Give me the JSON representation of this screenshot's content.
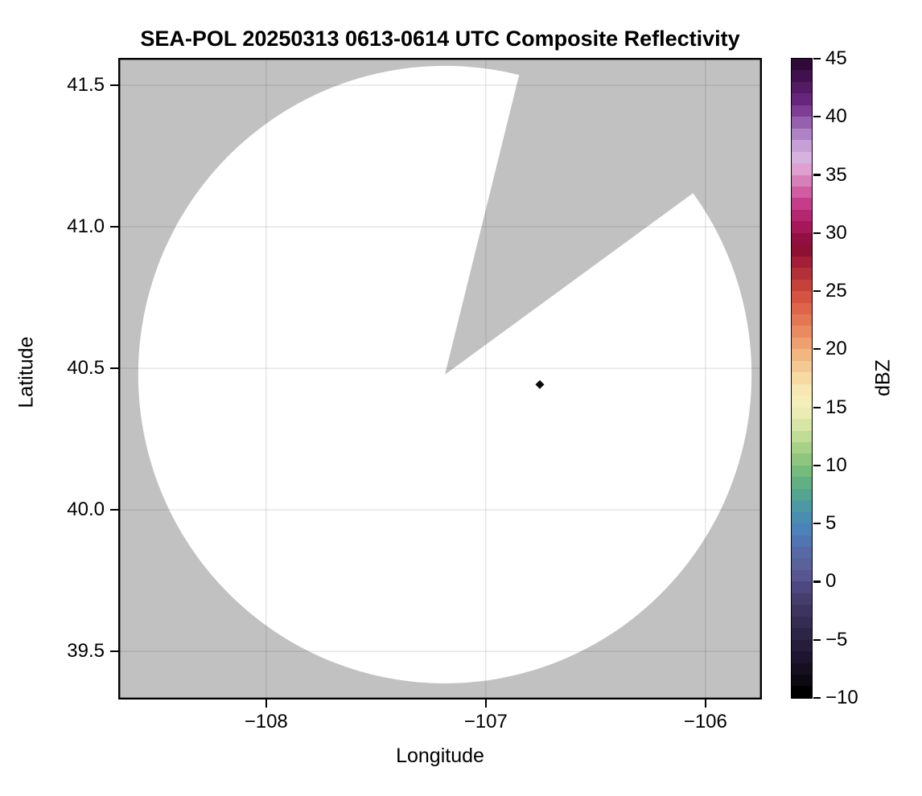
{
  "chart_data": {
    "type": "heatmap",
    "subtype": "radar-ppi-composite",
    "title": "SEA-POL 20250313 0613-0614 UTC Composite Reflectivity",
    "xlabel": "Longitude",
    "ylabel": "Latitude",
    "xlim": [
      -108.673,
      -105.743
    ],
    "ylim": [
      39.33,
      41.597
    ],
    "x_ticks": {
      "values": [
        -108,
        -107,
        -106
      ],
      "labels": [
        "−108",
        "−107",
        "−106"
      ]
    },
    "y_ticks": {
      "values": [
        41.5,
        41.0,
        40.5,
        40.0,
        39.5
      ],
      "labels": [
        "41.5",
        "41.0",
        "40.5",
        "40.0",
        "39.5"
      ]
    },
    "grid": true,
    "colors": {
      "figure_background": "#ffffff",
      "map_background_gray": "#c1c1c1",
      "scanned_area_white": "#ffffff",
      "gridline": "rgba(0,0,0,0.09)",
      "spine": "#000000"
    },
    "radar_coverage": {
      "center_lon": -107.186,
      "center_lat": 40.478,
      "radius_deg_lon": 1.396,
      "radius_deg_lat": 1.091,
      "approx_radius_km": 122,
      "blocked_sector_azimuth_deg": [
        14,
        54
      ],
      "note": "white disk = scanned area; gray wedge between azimuths is unscanned/blocked sector"
    },
    "data_points": [
      {
        "lon": -106.754,
        "lat": 40.443,
        "value_dbz": -10,
        "marker": "diamond",
        "color": "#0b0b0b",
        "half_size_px": 5.5
      }
    ],
    "colorbar": {
      "label": "dBZ",
      "vmin": -10,
      "vmax": 45,
      "tick_step": 5,
      "tick_values": [
        45,
        40,
        35,
        30,
        25,
        20,
        15,
        10,
        5,
        0,
        -5,
        -10
      ],
      "tick_labels": [
        "45",
        "40",
        "35",
        "30",
        "25",
        "20",
        "15",
        "10",
        "5",
        "0",
        "−5",
        "−10"
      ],
      "band_size_dbz": 1,
      "band_colors_top_to_bottom": [
        "#2f0a38",
        "#41114e",
        "#541a65",
        "#68257c",
        "#7d3d94",
        "#9560ae",
        "#ae82c4",
        "#c5a0d6",
        "#d7b2de",
        "#dfa0d0",
        "#d87eb9",
        "#d05ca1",
        "#c53d89",
        "#b62670",
        "#a51758",
        "#930e41",
        "#8f1035",
        "#a21f36",
        "#b43037",
        "#c64138",
        "#d55340",
        "#de654a",
        "#e47754",
        "#e98a60",
        "#eea06f",
        "#f2b681",
        "#f4ca92",
        "#f5dba1",
        "#f6e8b0",
        "#f3eeba",
        "#e9edb3",
        "#d8e6a5",
        "#c1dc95",
        "#a8d188",
        "#8fc67e",
        "#75bb7a",
        "#61b083",
        "#54a492",
        "#4d99a3",
        "#498db1",
        "#4a82b9",
        "#5175b2",
        "#576aa7",
        "#5a629c",
        "#585691",
        "#4e4880",
        "#453d6c",
        "#3d355f",
        "#352d52",
        "#2d2545",
        "#251d3a",
        "#1d1530",
        "#150f20",
        "#0d0913",
        "#000000"
      ]
    }
  }
}
